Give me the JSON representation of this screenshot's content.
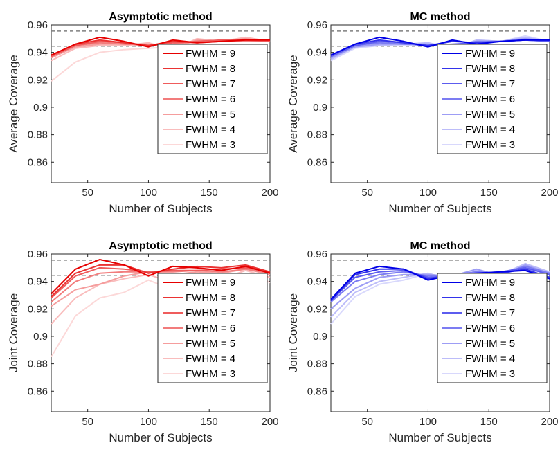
{
  "chart_data": [
    {
      "type": "line",
      "title": "Asymptotic method",
      "xlabel": "Number of Subjects",
      "ylabel": "Average Coverage",
      "xlim": [
        20,
        200
      ],
      "ylim": [
        0.845,
        0.96
      ],
      "xticks": [
        50,
        100,
        150,
        200
      ],
      "yticks": [
        0.86,
        0.88,
        0.9,
        0.92,
        0.94,
        0.96
      ],
      "reference_lines": [
        0.9445,
        0.9555
      ],
      "x": [
        20,
        40,
        60,
        80,
        100,
        120,
        140,
        160,
        180,
        200
      ],
      "legend_position": "lower-right",
      "series": [
        {
          "name": "FWHM = 9",
          "color": "#e60000",
          "values": [
            0.938,
            0.946,
            0.951,
            0.948,
            0.944,
            0.949,
            0.947,
            0.948,
            0.949,
            0.949
          ]
        },
        {
          "name": "FWHM = 8",
          "color": "#ea3333",
          "values": [
            0.938,
            0.946,
            0.949,
            0.947,
            0.945,
            0.948,
            0.947,
            0.948,
            0.949,
            0.949
          ]
        },
        {
          "name": "FWHM = 7",
          "color": "#ef5c5c",
          "values": [
            0.937,
            0.945,
            0.948,
            0.947,
            0.945,
            0.947,
            0.948,
            0.949,
            0.949,
            0.948
          ]
        },
        {
          "name": "FWHM = 6",
          "color": "#f27c7c",
          "values": [
            0.937,
            0.945,
            0.947,
            0.946,
            0.945,
            0.946,
            0.948,
            0.948,
            0.948,
            0.948
          ]
        },
        {
          "name": "FWHM = 5",
          "color": "#f59d9d",
          "values": [
            0.936,
            0.944,
            0.946,
            0.946,
            0.946,
            0.943,
            0.949,
            0.948,
            0.95,
            0.948
          ]
        },
        {
          "name": "FWHM = 4",
          "color": "#f9bcbc",
          "values": [
            0.934,
            0.943,
            0.945,
            0.945,
            0.947,
            0.942,
            0.95,
            0.948,
            0.951,
            0.948
          ]
        },
        {
          "name": "FWHM = 3",
          "color": "#fcd8d8",
          "values": [
            0.919,
            0.933,
            0.94,
            0.942,
            0.943,
            0.944,
            0.947,
            0.949,
            0.95,
            0.949
          ]
        }
      ]
    },
    {
      "type": "line",
      "title": "MC method",
      "xlabel": "Number of Subjects",
      "ylabel": "Average Coverage",
      "xlim": [
        20,
        200
      ],
      "ylim": [
        0.845,
        0.96
      ],
      "xticks": [
        50,
        100,
        150,
        200
      ],
      "yticks": [
        0.86,
        0.88,
        0.9,
        0.92,
        0.94,
        0.96
      ],
      "reference_lines": [
        0.9445,
        0.9555
      ],
      "x": [
        20,
        40,
        60,
        80,
        100,
        120,
        140,
        160,
        180,
        200
      ],
      "legend_position": "lower-right",
      "series": [
        {
          "name": "FWHM = 9",
          "color": "#0000e6",
          "values": [
            0.938,
            0.946,
            0.951,
            0.948,
            0.944,
            0.949,
            0.946,
            0.948,
            0.949,
            0.949
          ]
        },
        {
          "name": "FWHM = 8",
          "color": "#3333ea",
          "values": [
            0.938,
            0.946,
            0.949,
            0.947,
            0.945,
            0.948,
            0.947,
            0.948,
            0.949,
            0.949
          ]
        },
        {
          "name": "FWHM = 7",
          "color": "#5c5cef",
          "values": [
            0.937,
            0.945,
            0.948,
            0.947,
            0.945,
            0.946,
            0.947,
            0.948,
            0.949,
            0.948
          ]
        },
        {
          "name": "FWHM = 6",
          "color": "#7c7cf2",
          "values": [
            0.937,
            0.945,
            0.947,
            0.946,
            0.945,
            0.945,
            0.948,
            0.948,
            0.949,
            0.948
          ]
        },
        {
          "name": "FWHM = 5",
          "color": "#9d9df5",
          "values": [
            0.936,
            0.944,
            0.946,
            0.946,
            0.946,
            0.944,
            0.948,
            0.948,
            0.95,
            0.948
          ]
        },
        {
          "name": "FWHM = 4",
          "color": "#bcbcf9",
          "values": [
            0.935,
            0.944,
            0.945,
            0.946,
            0.947,
            0.943,
            0.949,
            0.948,
            0.951,
            0.948
          ]
        },
        {
          "name": "FWHM = 3",
          "color": "#d8d8fc",
          "values": [
            0.934,
            0.943,
            0.945,
            0.945,
            0.947,
            0.943,
            0.949,
            0.948,
            0.952,
            0.948
          ]
        }
      ]
    },
    {
      "type": "line",
      "title": "Asymptotic method",
      "xlabel": "Number of Subjects",
      "ylabel": "Joint Coverage",
      "xlim": [
        20,
        200
      ],
      "ylim": [
        0.845,
        0.96
      ],
      "xticks": [
        50,
        100,
        150,
        200
      ],
      "yticks": [
        0.86,
        0.88,
        0.9,
        0.92,
        0.94,
        0.96
      ],
      "reference_lines": [
        0.9445,
        0.9555
      ],
      "x": [
        20,
        40,
        60,
        80,
        100,
        120,
        140,
        160,
        180,
        200
      ],
      "legend_position": "lower-right",
      "series": [
        {
          "name": "FWHM = 9",
          "color": "#e60000",
          "values": [
            0.931,
            0.949,
            0.956,
            0.952,
            0.944,
            0.951,
            0.95,
            0.948,
            0.951,
            0.946
          ]
        },
        {
          "name": "FWHM = 8",
          "color": "#ea3333",
          "values": [
            0.929,
            0.946,
            0.952,
            0.952,
            0.946,
            0.949,
            0.951,
            0.95,
            0.952,
            0.947
          ]
        },
        {
          "name": "FWHM = 7",
          "color": "#ef5c5c",
          "values": [
            0.928,
            0.944,
            0.95,
            0.949,
            0.947,
            0.948,
            0.948,
            0.949,
            0.95,
            0.947
          ]
        },
        {
          "name": "FWHM = 6",
          "color": "#f27c7c",
          "values": [
            0.925,
            0.94,
            0.946,
            0.947,
            0.947,
            0.947,
            0.948,
            0.947,
            0.949,
            0.946
          ]
        },
        {
          "name": "FWHM = 5",
          "color": "#f59d9d",
          "values": [
            0.922,
            0.934,
            0.938,
            0.944,
            0.947,
            0.945,
            0.947,
            0.946,
            0.949,
            0.945
          ]
        },
        {
          "name": "FWHM = 4",
          "color": "#f9bcbc",
          "values": [
            0.909,
            0.928,
            0.938,
            0.942,
            0.945,
            0.939,
            0.946,
            0.942,
            0.948,
            0.943
          ]
        },
        {
          "name": "FWHM = 3",
          "color": "#fcd8d8",
          "values": [
            0.885,
            0.915,
            0.928,
            0.932,
            0.941,
            0.934,
            0.945,
            0.935,
            0.95,
            0.939
          ]
        }
      ]
    },
    {
      "type": "line",
      "title": "MC method",
      "xlabel": "Number of Subjects",
      "ylabel": "Joint Coverage",
      "xlim": [
        20,
        200
      ],
      "ylim": [
        0.845,
        0.96
      ],
      "xticks": [
        50,
        100,
        150,
        200
      ],
      "yticks": [
        0.86,
        0.88,
        0.9,
        0.92,
        0.94,
        0.96
      ],
      "reference_lines": [
        0.9445,
        0.9555
      ],
      "x": [
        20,
        40,
        60,
        80,
        100,
        120,
        140,
        160,
        180,
        200
      ],
      "legend_position": "lower-right",
      "series": [
        {
          "name": "FWHM = 9",
          "color": "#0000e6",
          "values": [
            0.927,
            0.946,
            0.951,
            0.949,
            0.941,
            0.945,
            0.946,
            0.947,
            0.948,
            0.942
          ]
        },
        {
          "name": "FWHM = 8",
          "color": "#3333ea",
          "values": [
            0.926,
            0.945,
            0.949,
            0.949,
            0.942,
            0.945,
            0.946,
            0.946,
            0.949,
            0.943
          ]
        },
        {
          "name": "FWHM = 7",
          "color": "#5c5cef",
          "values": [
            0.926,
            0.943,
            0.947,
            0.948,
            0.943,
            0.944,
            0.946,
            0.947,
            0.95,
            0.945
          ]
        },
        {
          "name": "FWHM = 6",
          "color": "#7c7cf2",
          "values": [
            0.925,
            0.94,
            0.945,
            0.947,
            0.944,
            0.945,
            0.947,
            0.946,
            0.951,
            0.946
          ]
        },
        {
          "name": "FWHM = 5",
          "color": "#9d9df5",
          "values": [
            0.92,
            0.935,
            0.943,
            0.945,
            0.945,
            0.944,
            0.949,
            0.944,
            0.952,
            0.946
          ]
        },
        {
          "name": "FWHM = 4",
          "color": "#bcbcf9",
          "values": [
            0.914,
            0.932,
            0.94,
            0.943,
            0.946,
            0.941,
            0.948,
            0.945,
            0.953,
            0.947
          ]
        },
        {
          "name": "FWHM = 3",
          "color": "#d8d8fc",
          "values": [
            0.909,
            0.929,
            0.938,
            0.941,
            0.946,
            0.939,
            0.948,
            0.944,
            0.953,
            0.947
          ]
        }
      ]
    }
  ]
}
